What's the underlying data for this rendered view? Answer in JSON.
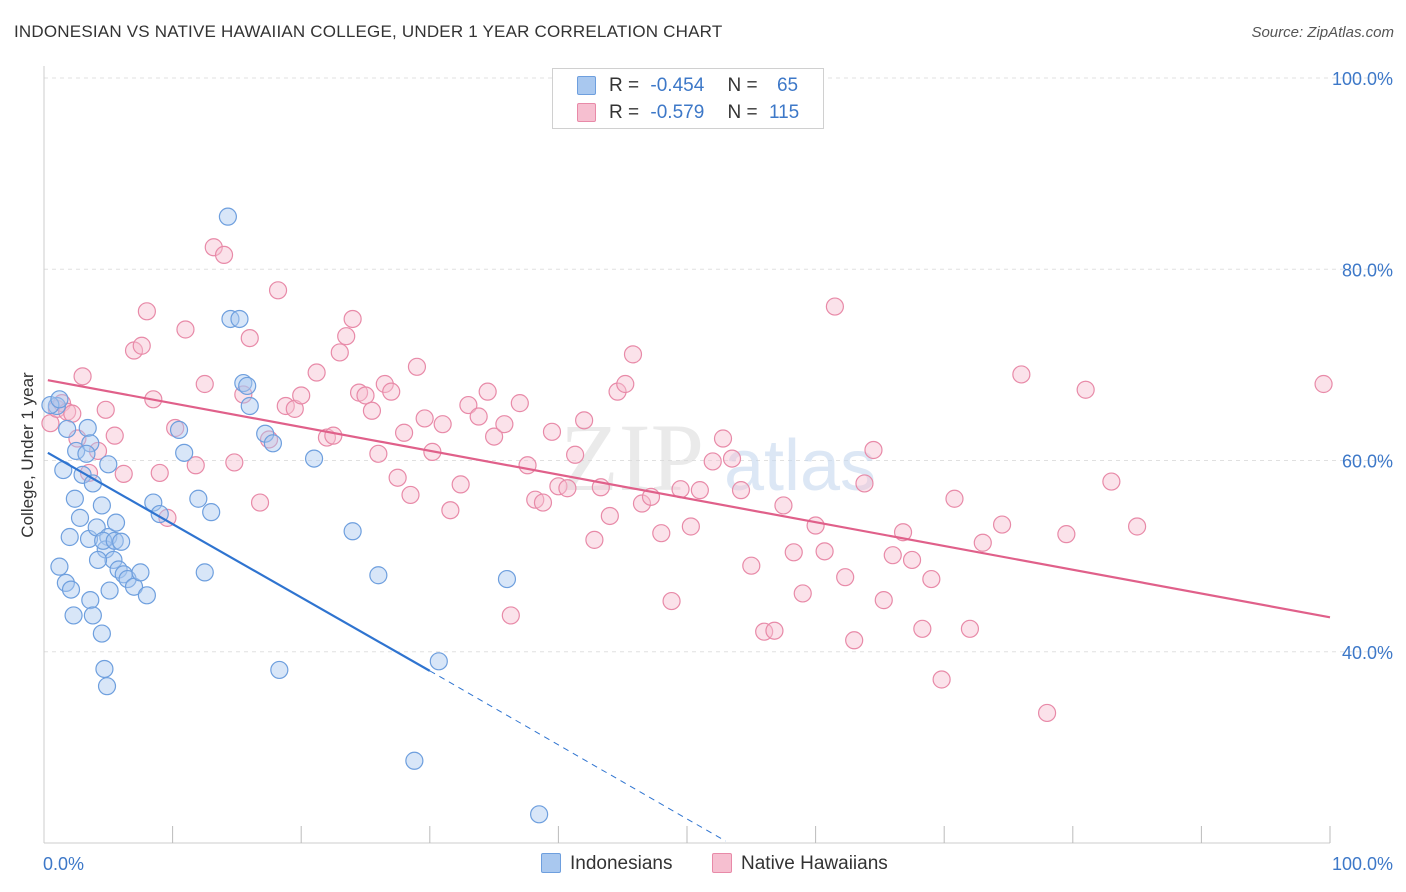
{
  "header": {
    "title": "INDONESIAN VS NATIVE HAWAIIAN COLLEGE, UNDER 1 YEAR CORRELATION CHART",
    "source": "Source: ZipAtlas.com"
  },
  "colors": {
    "blue_fill": "#a9c8ef",
    "blue_stroke": "#6e9fde",
    "blue_line": "#2f74d0",
    "pink_fill": "#f6bfd0",
    "pink_stroke": "#e88aa8",
    "pink_line": "#e0608a",
    "axis_label": "#3d78c8",
    "grid": "#e0e0e0"
  },
  "stats": {
    "blue": {
      "r_label": "R =",
      "r_value": "-0.454",
      "n_label": "N =",
      "n_value": "65"
    },
    "pink": {
      "r_label": "R =",
      "r_value": "-0.579",
      "n_label": "N =",
      "n_value": "115"
    }
  },
  "legend": {
    "blue": "Indonesians",
    "pink": "Native Hawaiians"
  },
  "watermark": {
    "zip": "ZIP",
    "atlas": "atlas"
  },
  "chart_data": {
    "type": "scatter",
    "xlabel": "",
    "ylabel": "College, Under 1 year",
    "xlim": [
      0,
      100
    ],
    "ylim": [
      20,
      100
    ],
    "x_tick_labels": [
      "0.0%",
      "100.0%"
    ],
    "y_ticks": [
      40,
      60,
      80,
      100
    ],
    "y_tick_labels": [
      "40.0%",
      "60.0%",
      "80.0%",
      "100.0%"
    ],
    "grid": true,
    "series": [
      {
        "name": "Indonesians",
        "color": "blue",
        "trend": {
          "x": [
            0.3,
            30
          ],
          "y": [
            60.8,
            38.0
          ],
          "dashed_to": {
            "x": 53,
            "y": 20.2
          }
        },
        "points": [
          [
            1.0,
            65.7
          ],
          [
            0.5,
            65.8
          ],
          [
            1.2,
            66.4
          ],
          [
            1.8,
            63.3
          ],
          [
            2.5,
            61.0
          ],
          [
            1.5,
            59.0
          ],
          [
            2.4,
            56.0
          ],
          [
            2.8,
            54.0
          ],
          [
            3.0,
            58.5
          ],
          [
            3.4,
            63.4
          ],
          [
            3.6,
            61.8
          ],
          [
            3.3,
            60.7
          ],
          [
            3.5,
            51.8
          ],
          [
            3.8,
            57.6
          ],
          [
            4.5,
            55.3
          ],
          [
            4.1,
            53.0
          ],
          [
            5.0,
            59.6
          ],
          [
            5.0,
            52.0
          ],
          [
            5.1,
            46.4
          ],
          [
            4.8,
            50.7
          ],
          [
            5.4,
            49.6
          ],
          [
            5.8,
            48.6
          ],
          [
            4.2,
            49.6
          ],
          [
            4.6,
            51.6
          ],
          [
            1.2,
            48.9
          ],
          [
            1.7,
            47.2
          ],
          [
            2.0,
            52.0
          ],
          [
            2.1,
            46.5
          ],
          [
            2.3,
            43.8
          ],
          [
            3.6,
            45.4
          ],
          [
            3.8,
            43.8
          ],
          [
            4.5,
            41.9
          ],
          [
            4.7,
            38.2
          ],
          [
            4.9,
            36.4
          ],
          [
            5.5,
            51.6
          ],
          [
            5.6,
            53.5
          ],
          [
            6.0,
            51.5
          ],
          [
            6.2,
            48.1
          ],
          [
            6.5,
            47.6
          ],
          [
            7.0,
            46.8
          ],
          [
            7.5,
            48.3
          ],
          [
            8.0,
            45.9
          ],
          [
            8.5,
            55.6
          ],
          [
            9.0,
            54.4
          ],
          [
            10.5,
            63.2
          ],
          [
            10.9,
            60.8
          ],
          [
            12.0,
            56.0
          ],
          [
            12.5,
            48.3
          ],
          [
            13.0,
            54.6
          ],
          [
            14.3,
            85.5
          ],
          [
            14.5,
            74.8
          ],
          [
            15.2,
            74.8
          ],
          [
            15.5,
            68.1
          ],
          [
            15.8,
            67.8
          ],
          [
            16.0,
            65.7
          ],
          [
            17.2,
            62.8
          ],
          [
            17.8,
            61.8
          ],
          [
            18.3,
            38.1
          ],
          [
            21.0,
            60.2
          ],
          [
            24.0,
            52.6
          ],
          [
            26.0,
            48.0
          ],
          [
            30.7,
            39.0
          ],
          [
            36.0,
            47.6
          ],
          [
            38.5,
            23.0
          ],
          [
            28.8,
            28.6
          ]
        ]
      },
      {
        "name": "Native Hawaiians",
        "color": "pink",
        "trend": {
          "x": [
            0.3,
            100
          ],
          "y": [
            68.4,
            43.6
          ]
        },
        "points": [
          [
            0.5,
            63.9
          ],
          [
            1.0,
            65.4
          ],
          [
            1.4,
            66.0
          ],
          [
            1.8,
            65.1
          ],
          [
            2.2,
            64.9
          ],
          [
            2.6,
            62.3
          ],
          [
            3.0,
            68.8
          ],
          [
            3.5,
            58.7
          ],
          [
            4.2,
            61.0
          ],
          [
            4.8,
            65.3
          ],
          [
            5.5,
            62.6
          ],
          [
            6.2,
            58.6
          ],
          [
            7.0,
            71.5
          ],
          [
            7.6,
            72.0
          ],
          [
            8.0,
            75.6
          ],
          [
            8.5,
            66.4
          ],
          [
            9.0,
            58.7
          ],
          [
            9.6,
            54.0
          ],
          [
            10.2,
            63.4
          ],
          [
            11.0,
            73.7
          ],
          [
            11.8,
            59.5
          ],
          [
            12.5,
            68.0
          ],
          [
            13.2,
            82.3
          ],
          [
            14.0,
            81.5
          ],
          [
            14.8,
            59.8
          ],
          [
            15.5,
            66.9
          ],
          [
            16.0,
            72.8
          ],
          [
            16.8,
            55.6
          ],
          [
            17.5,
            62.2
          ],
          [
            18.2,
            77.8
          ],
          [
            18.8,
            65.7
          ],
          [
            19.5,
            65.4
          ],
          [
            20.0,
            66.8
          ],
          [
            21.2,
            69.2
          ],
          [
            22.0,
            62.4
          ],
          [
            22.5,
            62.6
          ],
          [
            23.0,
            71.3
          ],
          [
            23.5,
            73.0
          ],
          [
            24.0,
            74.8
          ],
          [
            24.5,
            67.1
          ],
          [
            25.0,
            66.8
          ],
          [
            25.5,
            65.2
          ],
          [
            26.0,
            60.7
          ],
          [
            26.5,
            68.0
          ],
          [
            27.0,
            67.2
          ],
          [
            27.5,
            58.2
          ],
          [
            28.0,
            62.9
          ],
          [
            28.5,
            56.4
          ],
          [
            29.0,
            69.8
          ],
          [
            29.6,
            64.4
          ],
          [
            30.2,
            60.9
          ],
          [
            31.0,
            63.8
          ],
          [
            31.6,
            54.8
          ],
          [
            32.4,
            57.5
          ],
          [
            33.0,
            65.8
          ],
          [
            33.8,
            64.6
          ],
          [
            34.5,
            67.2
          ],
          [
            35.0,
            62.5
          ],
          [
            35.8,
            63.8
          ],
          [
            36.3,
            43.8
          ],
          [
            37.0,
            66.0
          ],
          [
            37.6,
            59.5
          ],
          [
            38.2,
            55.9
          ],
          [
            38.8,
            55.6
          ],
          [
            39.5,
            63.0
          ],
          [
            40.0,
            57.3
          ],
          [
            40.7,
            57.1
          ],
          [
            41.3,
            60.6
          ],
          [
            42.0,
            64.2
          ],
          [
            42.8,
            51.7
          ],
          [
            43.3,
            57.2
          ],
          [
            44.0,
            54.2
          ],
          [
            44.6,
            67.2
          ],
          [
            45.2,
            68.0
          ],
          [
            45.8,
            71.1
          ],
          [
            46.5,
            55.5
          ],
          [
            47.2,
            56.2
          ],
          [
            48.0,
            52.4
          ],
          [
            48.8,
            45.3
          ],
          [
            49.5,
            57.0
          ],
          [
            50.3,
            53.1
          ],
          [
            51.0,
            56.9
          ],
          [
            52.0,
            59.9
          ],
          [
            52.8,
            62.3
          ],
          [
            53.5,
            60.2
          ],
          [
            54.2,
            56.9
          ],
          [
            55.0,
            49.0
          ],
          [
            56.0,
            42.1
          ],
          [
            56.8,
            42.2
          ],
          [
            57.5,
            55.3
          ],
          [
            58.3,
            50.4
          ],
          [
            59.0,
            46.1
          ],
          [
            60.0,
            53.2
          ],
          [
            60.7,
            50.5
          ],
          [
            61.5,
            76.1
          ],
          [
            62.3,
            47.8
          ],
          [
            63.0,
            41.2
          ],
          [
            63.8,
            57.6
          ],
          [
            64.5,
            61.1
          ],
          [
            65.3,
            45.4
          ],
          [
            66.0,
            50.1
          ],
          [
            66.8,
            52.5
          ],
          [
            67.5,
            49.6
          ],
          [
            68.3,
            42.4
          ],
          [
            69.0,
            47.6
          ],
          [
            69.8,
            37.1
          ],
          [
            70.8,
            56.0
          ],
          [
            72.0,
            42.4
          ],
          [
            73.0,
            51.4
          ],
          [
            74.5,
            53.3
          ],
          [
            76.0,
            69.0
          ],
          [
            78.0,
            33.6
          ],
          [
            79.5,
            52.3
          ],
          [
            81.0,
            67.4
          ],
          [
            83.0,
            57.8
          ],
          [
            85.0,
            53.1
          ],
          [
            99.5,
            68.0
          ]
        ]
      }
    ]
  }
}
